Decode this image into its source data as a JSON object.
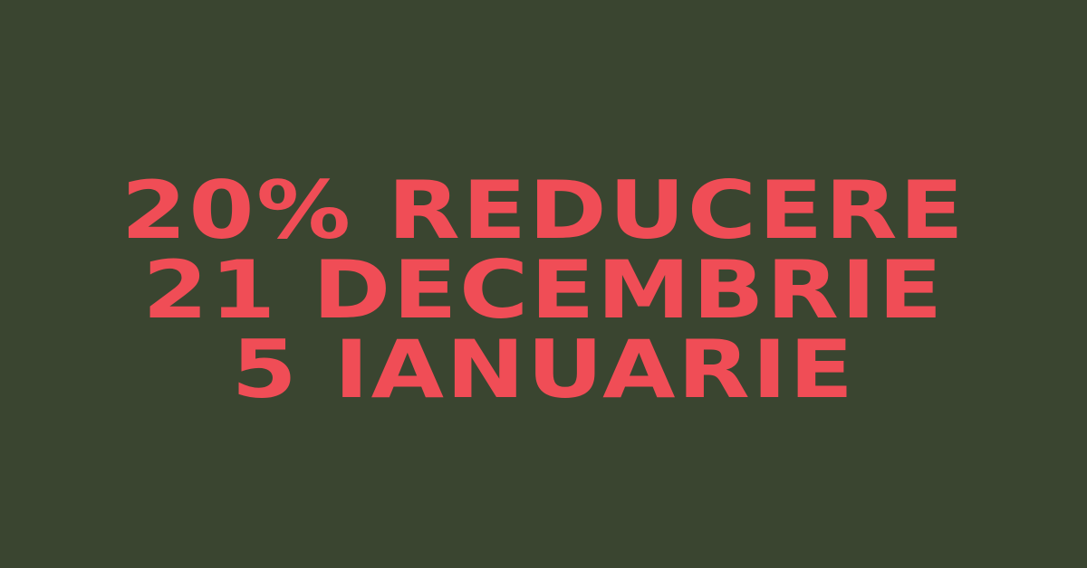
{
  "promo": {
    "line1": "20% REDUCERE",
    "line2": "21 DECEMBRIE",
    "line3": "5 IANUARIE"
  },
  "colors": {
    "background": "#3a4530",
    "text": "#f04d56"
  }
}
